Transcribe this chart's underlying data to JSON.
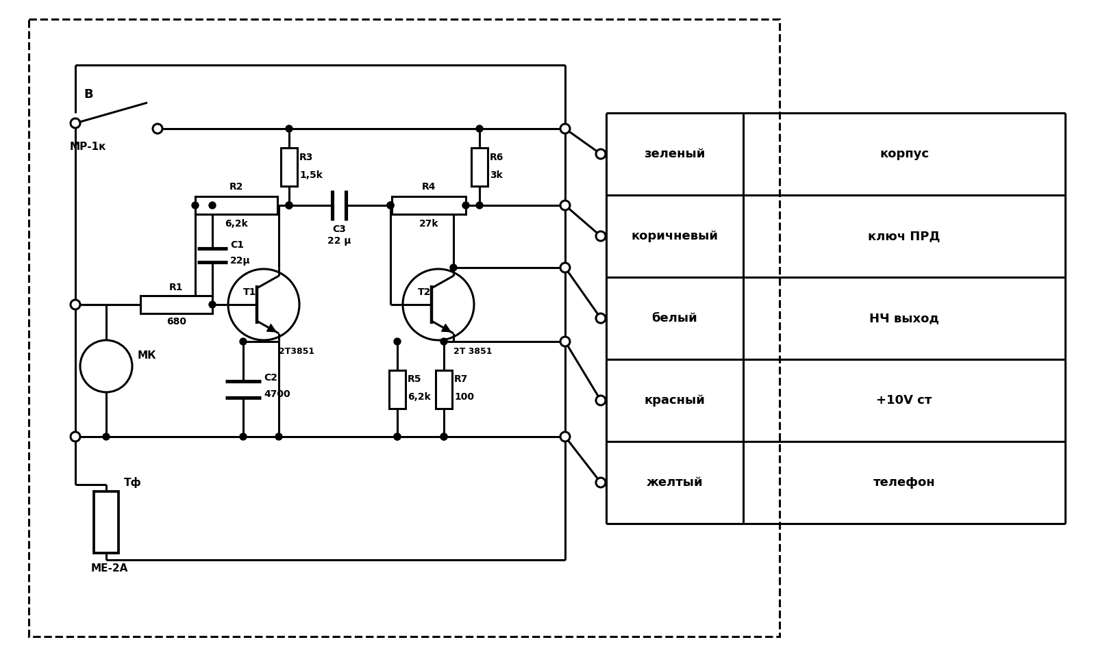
{
  "bg_color": "#ffffff",
  "line_color": "#000000",
  "lw": 2.2,
  "fig_width": 16.0,
  "fig_height": 9.57,
  "table_rows": [
    [
      "зеленый",
      "корпус"
    ],
    [
      "коричневый",
      "ключ ПРД"
    ],
    [
      "белый",
      "НЧ выход"
    ],
    [
      "красный",
      "+10V ст"
    ],
    [
      "желтый",
      "телефон"
    ]
  ],
  "switch_label": "В",
  "switch_sublabel": "МР-1к",
  "mk_label": "МК",
  "r1_label": "R1",
  "r1_val": "680",
  "r2_label": "R2",
  "r2_val": "6,2k",
  "r3_label": "R3",
  "r3_val": "1,5k",
  "r4_label": "R4",
  "r4_val": "27k",
  "r5_label": "R5",
  "r5_val": "6,2k",
  "r6_label": "R6",
  "r6_val": "3k",
  "r7_label": "R7",
  "r7_val": "100",
  "c1_label": "C1",
  "c1_val": "22μ",
  "c2_label": "C2",
  "c2_val": "4700",
  "c3_label": "C3",
  "c3_val": "22 μ",
  "t1_label": "2T3851",
  "t2_label": "2T 3851",
  "t1_name": "T1",
  "t2_name": "T2",
  "tf_label": "Тф",
  "tf_val": "МЕ-2А"
}
